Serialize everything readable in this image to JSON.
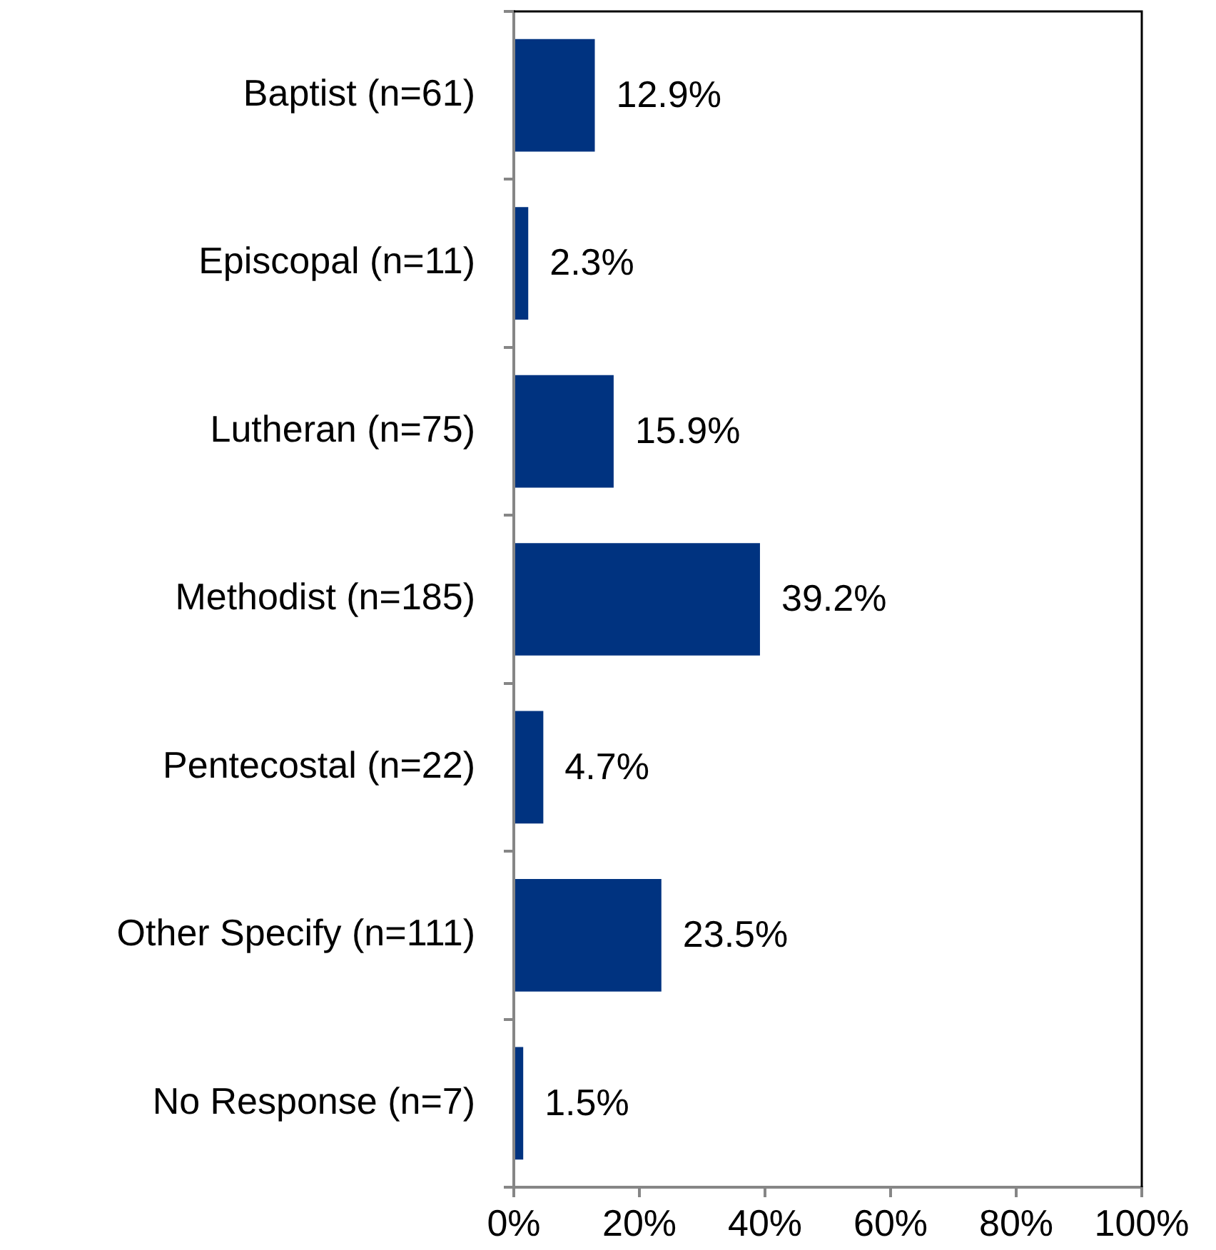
{
  "chart_data": {
    "type": "bar",
    "orientation": "horizontal",
    "categories": [
      "Baptist (n=61)",
      "Episcopal (n=11)",
      "Lutheran (n=75)",
      "Methodist (n=185)",
      "Pentecostal (n=22)",
      "Other Specify (n=111)",
      "No Response (n=7)"
    ],
    "values": [
      12.9,
      2.3,
      15.9,
      39.2,
      4.7,
      23.5,
      1.5
    ],
    "value_labels": [
      "12.9%",
      "2.3%",
      "15.9%",
      "39.2%",
      "4.7%",
      "23.5%",
      "1.5%"
    ],
    "color": "#003380",
    "xlim": [
      0,
      100
    ],
    "xticks": [
      {
        "value": 0,
        "label": "0%"
      },
      {
        "value": 20,
        "label": "20%"
      },
      {
        "value": 40,
        "label": "40%"
      },
      {
        "value": 60,
        "label": "60%"
      },
      {
        "value": 80,
        "label": "80%"
      },
      {
        "value": 100,
        "label": "100%"
      }
    ],
    "grid": false,
    "legend": false
  }
}
